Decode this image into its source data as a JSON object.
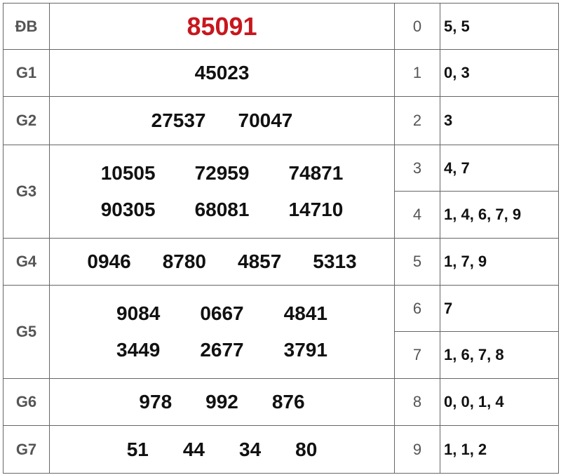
{
  "colors": {
    "special_prize": "#c8161d",
    "label": "#555555",
    "border": "#666666"
  },
  "prizes": [
    {
      "label": "ĐB",
      "lines": [
        [
          "85091"
        ]
      ]
    },
    {
      "label": "G1",
      "lines": [
        [
          "45023"
        ]
      ]
    },
    {
      "label": "G2",
      "lines": [
        [
          "27537",
          "70047"
        ]
      ]
    },
    {
      "label": "G3",
      "lines": [
        [
          "10505",
          "72959",
          "74871"
        ],
        [
          "90305",
          "68081",
          "14710"
        ]
      ]
    },
    {
      "label": "G4",
      "lines": [
        [
          "0946",
          "8780",
          "4857",
          "5313"
        ]
      ]
    },
    {
      "label": "G5",
      "lines": [
        [
          "9084",
          "0667",
          "4841"
        ],
        [
          "3449",
          "2677",
          "3791"
        ]
      ]
    },
    {
      "label": "G6",
      "lines": [
        [
          "978",
          "992",
          "876"
        ]
      ]
    },
    {
      "label": "G7",
      "lines": [
        [
          "51",
          "44",
          "34",
          "80"
        ]
      ]
    }
  ],
  "heads": [
    {
      "head": "0",
      "tails": "5, 5"
    },
    {
      "head": "1",
      "tails": "0, 3"
    },
    {
      "head": "2",
      "tails": "3"
    },
    {
      "head": "3",
      "tails": "4, 7"
    },
    {
      "head": "4",
      "tails": "1, 4, 6, 7, 9"
    },
    {
      "head": "5",
      "tails": "1, 7, 9"
    },
    {
      "head": "6",
      "tails": "7"
    },
    {
      "head": "7",
      "tails": "1, 6, 7, 8"
    },
    {
      "head": "8",
      "tails": "0, 0, 1, 4"
    },
    {
      "head": "9",
      "tails": "1, 1, 2"
    }
  ]
}
